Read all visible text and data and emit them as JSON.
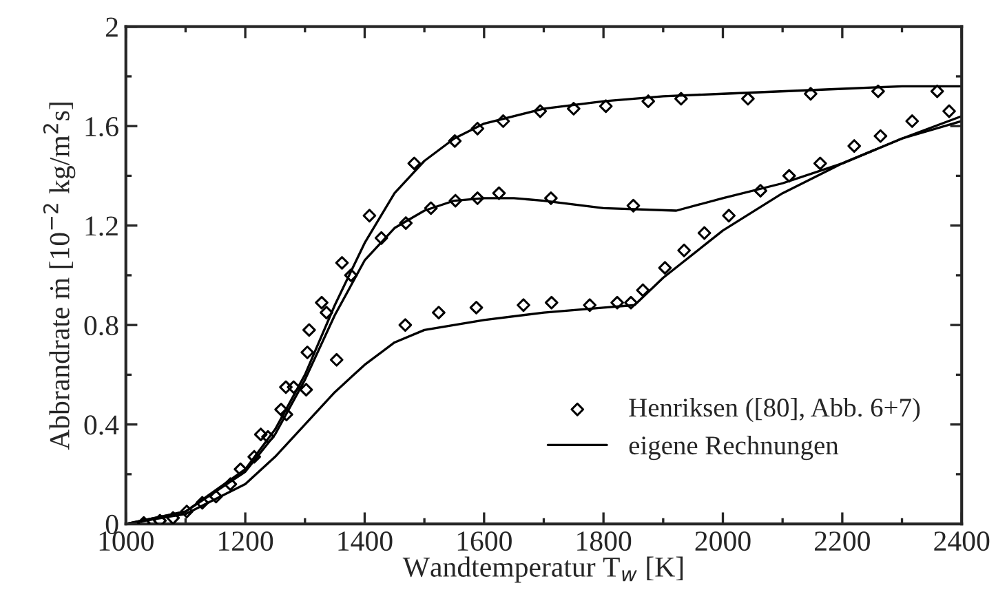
{
  "chart_data": {
    "type": "line",
    "xlabel": "Wandtemperatur T$_{w}$ [K]",
    "ylabel": "Abbrandrate ṁ [10$^{−2}$ kg/m$^{2}$s]",
    "xlim": [
      1000,
      2400
    ],
    "ylim": [
      0,
      2
    ],
    "xticks": [
      1000,
      1200,
      1400,
      1600,
      1800,
      2000,
      2200,
      2400
    ],
    "yticks": [
      0,
      0.4,
      0.8,
      1.2,
      1.6,
      2
    ],
    "grid": false,
    "legend": "bottom right",
    "series": [
      {
        "name": "Henriksen ([80], Abb. 6+7)",
        "type": "scatter",
        "marker": "diamond",
        "color": "#000000",
        "x": [
          1030,
          1057,
          1079,
          1102,
          1128,
          1151,
          1175,
          1192,
          1215,
          1226,
          1238,
          1260,
          1268,
          1269,
          1281,
          1302,
          1304,
          1307,
          1328,
          1336,
          1353,
          1362,
          1377,
          1408,
          1428,
          1468,
          1469,
          1483,
          1511,
          1524,
          1551,
          1552,
          1587,
          1589,
          1589,
          1625,
          1632,
          1666,
          1694,
          1712,
          1713,
          1750,
          1777,
          1804,
          1823,
          1846,
          1850,
          1866,
          1875,
          1903,
          1930,
          1935,
          1969,
          2010,
          2042,
          2063,
          2111,
          2147,
          2163,
          2220,
          2260,
          2264,
          2317,
          2359,
          2379
        ],
        "values": [
          0.004,
          0.013,
          0.024,
          0.05,
          0.085,
          0.11,
          0.16,
          0.22,
          0.27,
          0.36,
          0.35,
          0.46,
          0.55,
          0.44,
          0.55,
          0.54,
          0.69,
          0.78,
          0.89,
          0.85,
          0.66,
          1.05,
          1.0,
          1.24,
          1.15,
          0.8,
          1.21,
          1.45,
          1.27,
          0.85,
          1.54,
          1.3,
          0.87,
          1.59,
          1.31,
          1.33,
          1.62,
          0.88,
          1.66,
          1.31,
          0.89,
          1.67,
          0.88,
          1.68,
          0.89,
          0.89,
          1.28,
          0.94,
          1.7,
          1.03,
          1.71,
          1.1,
          1.17,
          1.24,
          1.71,
          1.34,
          1.4,
          1.73,
          1.45,
          1.52,
          1.74,
          1.56,
          1.62,
          1.74,
          1.66
        ]
      },
      {
        "name": "eigene Rechnungen",
        "line_style": "solid",
        "color": "#000000",
        "x": [
          1000,
          1100,
          1200,
          1250,
          1300,
          1350,
          1400,
          1450,
          1500,
          1550,
          1600,
          1700,
          1800,
          1900,
          2000,
          2200,
          2300,
          2400
        ],
        "values": [
          0,
          0.05,
          0.22,
          0.38,
          0.6,
          0.88,
          1.13,
          1.33,
          1.46,
          1.55,
          1.61,
          1.67,
          1.7,
          1.72,
          1.73,
          1.75,
          1.76,
          1.76
        ]
      },
      {
        "line_style": "solid",
        "color": "#000000",
        "x": [
          1000,
          1100,
          1200,
          1250,
          1300,
          1350,
          1400,
          1450,
          1500,
          1550,
          1600,
          1650,
          1700,
          1800,
          1922,
          2000,
          2100,
          2200,
          2300,
          2400
        ],
        "values": [
          0,
          0.05,
          0.21,
          0.36,
          0.58,
          0.84,
          1.06,
          1.19,
          1.26,
          1.3,
          1.31,
          1.31,
          1.3,
          1.27,
          1.26,
          1.31,
          1.37,
          1.45,
          1.55,
          1.64
        ]
      },
      {
        "line_style": "solid",
        "color": "#000000",
        "x": [
          1000,
          1100,
          1200,
          1250,
          1300,
          1350,
          1400,
          1450,
          1500,
          1600,
          1700,
          1800,
          1852,
          1900,
          2000,
          2100,
          2200,
          2300,
          2400
        ],
        "values": [
          0,
          0.04,
          0.16,
          0.27,
          0.4,
          0.53,
          0.64,
          0.73,
          0.78,
          0.82,
          0.85,
          0.87,
          0.88,
          0.99,
          1.18,
          1.33,
          1.45,
          1.55,
          1.62
        ]
      }
    ]
  }
}
